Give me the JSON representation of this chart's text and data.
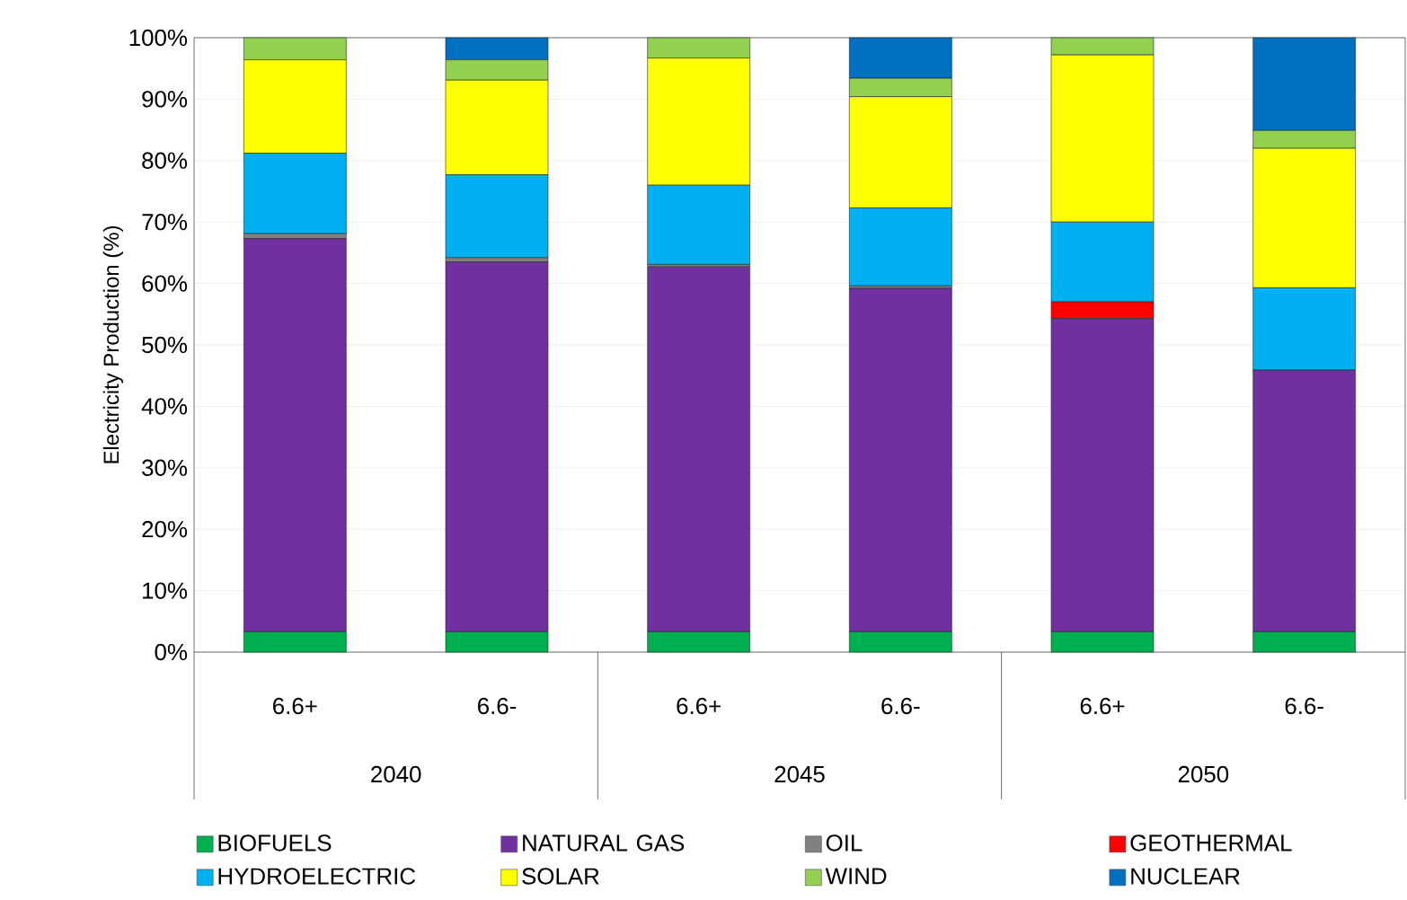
{
  "chart_data": {
    "type": "bar",
    "stacked": true,
    "ylabel": "Electricity Production (%)",
    "categories": [
      "6.6+",
      "6.6-",
      "6.6+",
      "6.6-",
      "6.6+",
      "6.6-"
    ],
    "annotations": [
      "2040",
      "2045",
      "2050"
    ],
    "series": [
      {
        "name": "BIOFUELS",
        "color": "#00b050",
        "values": [
          3.3,
          3.3,
          3.3,
          3.3,
          3.3,
          3.3
        ]
      },
      {
        "name": "NATURAL GAS",
        "color": "#7030a0",
        "values": [
          64.0,
          60.2,
          59.4,
          55.9,
          51.0,
          42.6
        ]
      },
      {
        "name": "OIL",
        "color": "#808080",
        "values": [
          0.8,
          0.7,
          0.4,
          0.4,
          0,
          0
        ]
      },
      {
        "name": "GEOTHERMAL",
        "color": "#ff0000",
        "values": [
          0,
          0,
          0,
          0,
          2.7,
          0
        ]
      },
      {
        "name": "HYDROELECTRIC",
        "color": "#00b0f0",
        "values": [
          13.1,
          13.5,
          12.9,
          12.7,
          13.0,
          13.4
        ]
      },
      {
        "name": "SOLAR",
        "color": "#ffff00",
        "values": [
          15.2,
          15.4,
          20.7,
          18.1,
          27.2,
          22.7
        ]
      },
      {
        "name": "WIND",
        "color": "#92d050",
        "values": [
          3.6,
          3.3,
          3.3,
          3.0,
          2.8,
          2.9
        ]
      },
      {
        "name": "NUCLEAR",
        "color": "#0070c0",
        "values": [
          0,
          3.6,
          0,
          6.6,
          0,
          15.1
        ]
      }
    ],
    "ylim": [
      0,
      100
    ],
    "yticks": [
      {
        "value": 0,
        "label": "0%"
      },
      {
        "value": 10,
        "label": "10%"
      },
      {
        "value": 20,
        "label": "20%"
      },
      {
        "value": 30,
        "label": "30%"
      },
      {
        "value": 40,
        "label": "40%"
      },
      {
        "value": 50,
        "label": "50%"
      },
      {
        "value": 60,
        "label": "60%"
      },
      {
        "value": 70,
        "label": "70%"
      },
      {
        "value": 80,
        "label": "80%"
      },
      {
        "value": 90,
        "label": "90%"
      },
      {
        "value": 100,
        "label": "100%"
      }
    ],
    "grid": "y",
    "legend": "bottom"
  }
}
